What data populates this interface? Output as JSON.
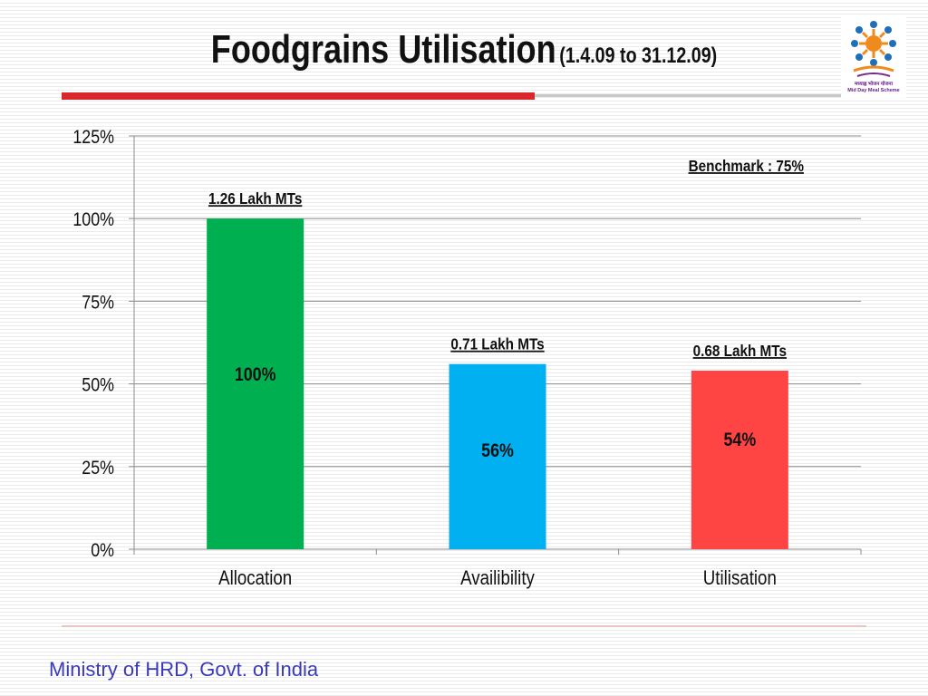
{
  "slide": {
    "title_main": "Foodgrains Utilisation",
    "title_sub": "(1.4.09 to 31.12.09)",
    "footer": "Ministry of HRD, Govt. of India",
    "logo": {
      "icon": "mid-day-meal-logo",
      "hindi_text": "मध्याह्न भोजन योजना",
      "english_text": "Mid Day Meal Scheme",
      "colors": [
        "#1e6fb8",
        "#f08a1c",
        "#7a2a8c"
      ]
    }
  },
  "chart_data": {
    "type": "bar",
    "categories": [
      "Allocation",
      "Availibility",
      "Utilisation"
    ],
    "values": [
      100,
      56,
      54
    ],
    "value_labels": [
      "100%",
      "56%",
      "54%"
    ],
    "top_labels": [
      "1.26 Lakh MTs",
      "0.71 Lakh MTs",
      "0.68 Lakh MTs"
    ],
    "colors": [
      "#00b050",
      "#00b0f0",
      "#ff4444"
    ],
    "ylim": [
      0,
      125
    ],
    "yticks": [
      0,
      25,
      50,
      75,
      100,
      125
    ],
    "ytick_labels": [
      "0%",
      "25%",
      "50%",
      "75%",
      "100%",
      "125%"
    ],
    "annotation": "Benchmark : 75%",
    "grid": true,
    "xlabel": "",
    "ylabel": ""
  }
}
